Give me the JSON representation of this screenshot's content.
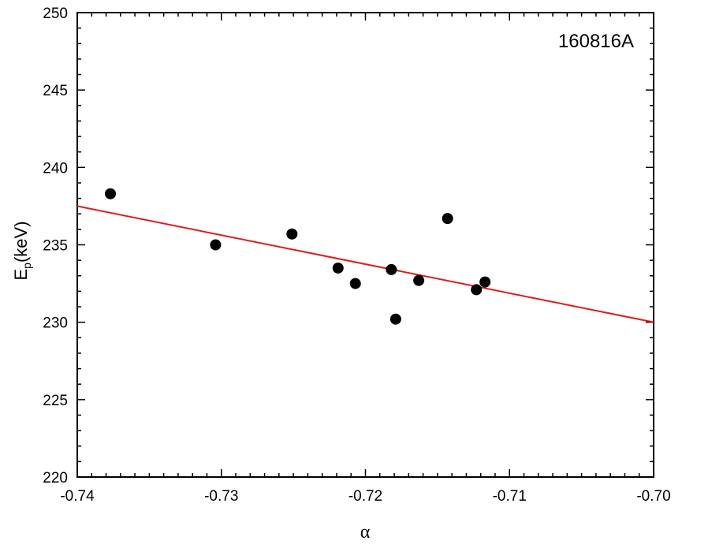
{
  "chart_data": {
    "type": "scatter",
    "title": "",
    "annotation": "160816A",
    "xlabel": "α",
    "ylabel": {
      "main": "E",
      "sub": "p",
      "rest": "(keV)"
    },
    "xlim": [
      -0.74,
      -0.7
    ],
    "ylim": [
      220,
      250
    ],
    "xticks": [
      -0.74,
      -0.73,
      -0.72,
      -0.71,
      -0.7
    ],
    "xtick_labels": [
      "-0.74",
      "-0.73",
      "-0.72",
      "-0.71",
      "-0.70"
    ],
    "yticks": [
      220,
      225,
      230,
      235,
      240,
      245,
      250
    ],
    "ytick_labels": [
      "220",
      "225",
      "230",
      "235",
      "240",
      "245",
      "250"
    ],
    "grid": false,
    "points": [
      {
        "x": -0.7377,
        "y": 238.3
      },
      {
        "x": -0.7304,
        "y": 235.0
      },
      {
        "x": -0.7251,
        "y": 235.7
      },
      {
        "x": -0.7219,
        "y": 233.5
      },
      {
        "x": -0.7207,
        "y": 232.5
      },
      {
        "x": -0.7182,
        "y": 233.4
      },
      {
        "x": -0.7179,
        "y": 230.2
      },
      {
        "x": -0.7163,
        "y": 232.7
      },
      {
        "x": -0.7143,
        "y": 236.7
      },
      {
        "x": -0.7123,
        "y": 232.1
      },
      {
        "x": -0.7117,
        "y": 232.6
      }
    ],
    "fit_line": {
      "x": [
        -0.74,
        -0.7
      ],
      "y": [
        237.5,
        230.0
      ],
      "color": "#e41a1c"
    },
    "marker_color": "#000000"
  }
}
